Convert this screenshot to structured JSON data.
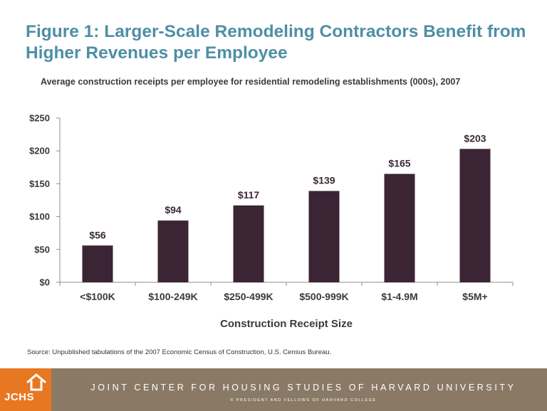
{
  "title": "Figure 1: Larger-Scale Remodeling Contractors Benefit from Higher Revenues per Employee",
  "subtitle": "Average construction receipts per employee for residential remodeling establishments (000s), 2007",
  "source": "Source: Unpublished tabulations of the 2007 Economic Census of Construction, U.S. Census Bureau.",
  "footer": {
    "org": "JOINT CENTER FOR HOUSING STUDIES OF HARVARD UNIVERSITY",
    "copyright": "© PRESIDENT AND FELLOWS OF HARVARD COLLEGE",
    "logo_text": "JCHS"
  },
  "colors": {
    "title": "#4E8FA6",
    "bar": "#3B2535",
    "footer_bg": "#8a7a65",
    "logo_bg": "#e87722"
  },
  "chart_data": {
    "type": "bar",
    "categories": [
      "<$100K",
      "$100-249K",
      "$250-499K",
      "$500-999K",
      "$1-4.9M",
      "$5M+"
    ],
    "values": [
      56,
      94,
      117,
      139,
      165,
      203
    ],
    "data_labels": [
      "$56",
      "$94",
      "$117",
      "$139",
      "$165",
      "$203"
    ],
    "xlabel": "Construction  Receipt  Size",
    "ylabel": "",
    "ylim": [
      0,
      250
    ],
    "yticks": [
      0,
      50,
      100,
      150,
      200,
      250
    ],
    "ytick_labels": [
      "$0",
      "$50",
      "$100",
      "$150",
      "$200",
      "$250"
    ],
    "grid": false,
    "legend": "none"
  }
}
